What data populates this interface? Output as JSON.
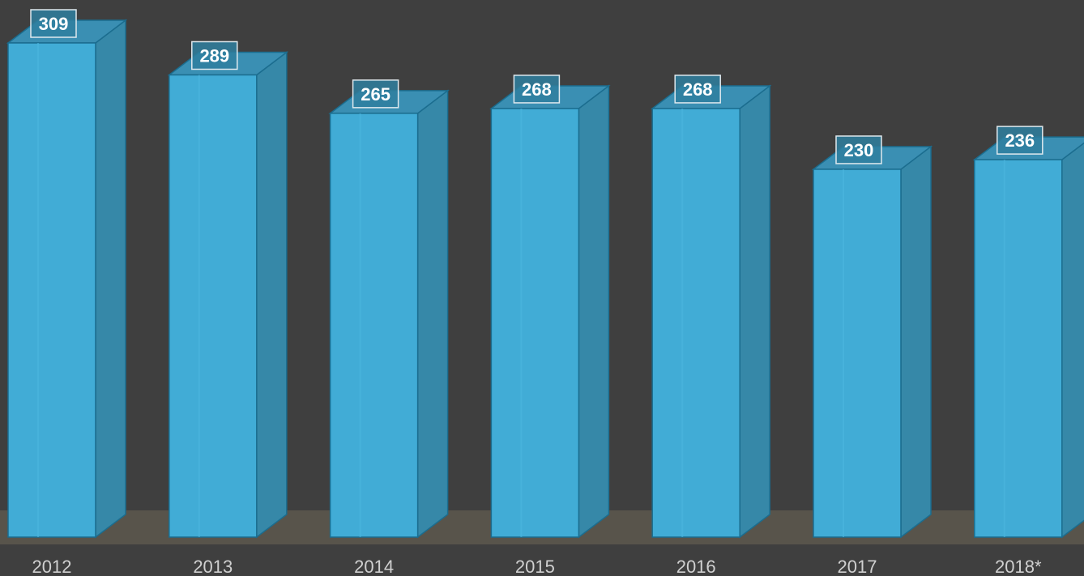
{
  "chart_data": {
    "type": "bar",
    "categories": [
      "2012",
      "2013",
      "2014",
      "2015",
      "2016",
      "2017",
      "2018*"
    ],
    "values": [
      309,
      289,
      265,
      268,
      268,
      230,
      236
    ],
    "color": "#41acd6"
  }
}
